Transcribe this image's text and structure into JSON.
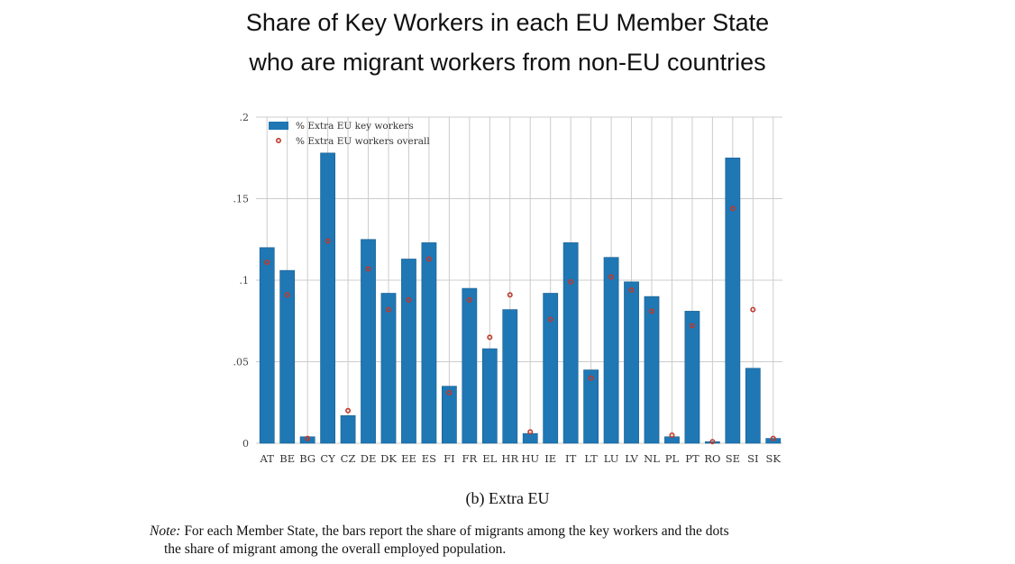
{
  "title_line1": "Share of Key Workers in each EU Member State",
  "title_line2": "who are migrant workers from non-EU countries",
  "caption": "(b) Extra EU",
  "note": {
    "label": "Note:",
    "line1": "For each Member State, the bars report the share of migrants among the key workers and the dots",
    "line2": "the share of migrant among the overall employed population."
  },
  "colors": {
    "bar": "#1f77b4",
    "dot": "#c0392b",
    "grid": "#cccccc"
  },
  "chart_data": {
    "type": "bar",
    "categories": [
      "AT",
      "BE",
      "BG",
      "CY",
      "CZ",
      "DE",
      "DK",
      "EE",
      "ES",
      "FI",
      "FR",
      "EL",
      "HR",
      "HU",
      "IE",
      "IT",
      "LT",
      "LU",
      "LV",
      "NL",
      "PL",
      "PT",
      "RO",
      "SE",
      "SI",
      "SK"
    ],
    "series": [
      {
        "name": "% Extra EU key workers",
        "kind": "bar",
        "values": [
          0.12,
          0.106,
          0.004,
          0.178,
          0.017,
          0.125,
          0.092,
          0.113,
          0.123,
          0.035,
          0.095,
          0.058,
          0.082,
          0.006,
          0.092,
          0.123,
          0.045,
          0.114,
          0.099,
          0.09,
          0.004,
          0.081,
          0.001,
          0.175,
          0.046,
          0.003
        ]
      },
      {
        "name": "% Extra EU workers overall",
        "kind": "scatter",
        "values": [
          0.111,
          0.091,
          0.003,
          0.124,
          0.02,
          0.107,
          0.082,
          0.088,
          0.113,
          0.031,
          0.088,
          0.065,
          0.091,
          0.007,
          0.076,
          0.099,
          0.04,
          0.102,
          0.094,
          0.081,
          0.005,
          0.072,
          0.001,
          0.144,
          0.082,
          0.003
        ]
      }
    ],
    "ylim": [
      0,
      0.2
    ],
    "yticks": [
      0,
      0.05,
      0.1,
      0.15,
      0.2
    ],
    "ytick_labels": [
      "0",
      ".05",
      ".1",
      ".15",
      ".2"
    ],
    "grid": true,
    "legend_position": "top-left"
  }
}
